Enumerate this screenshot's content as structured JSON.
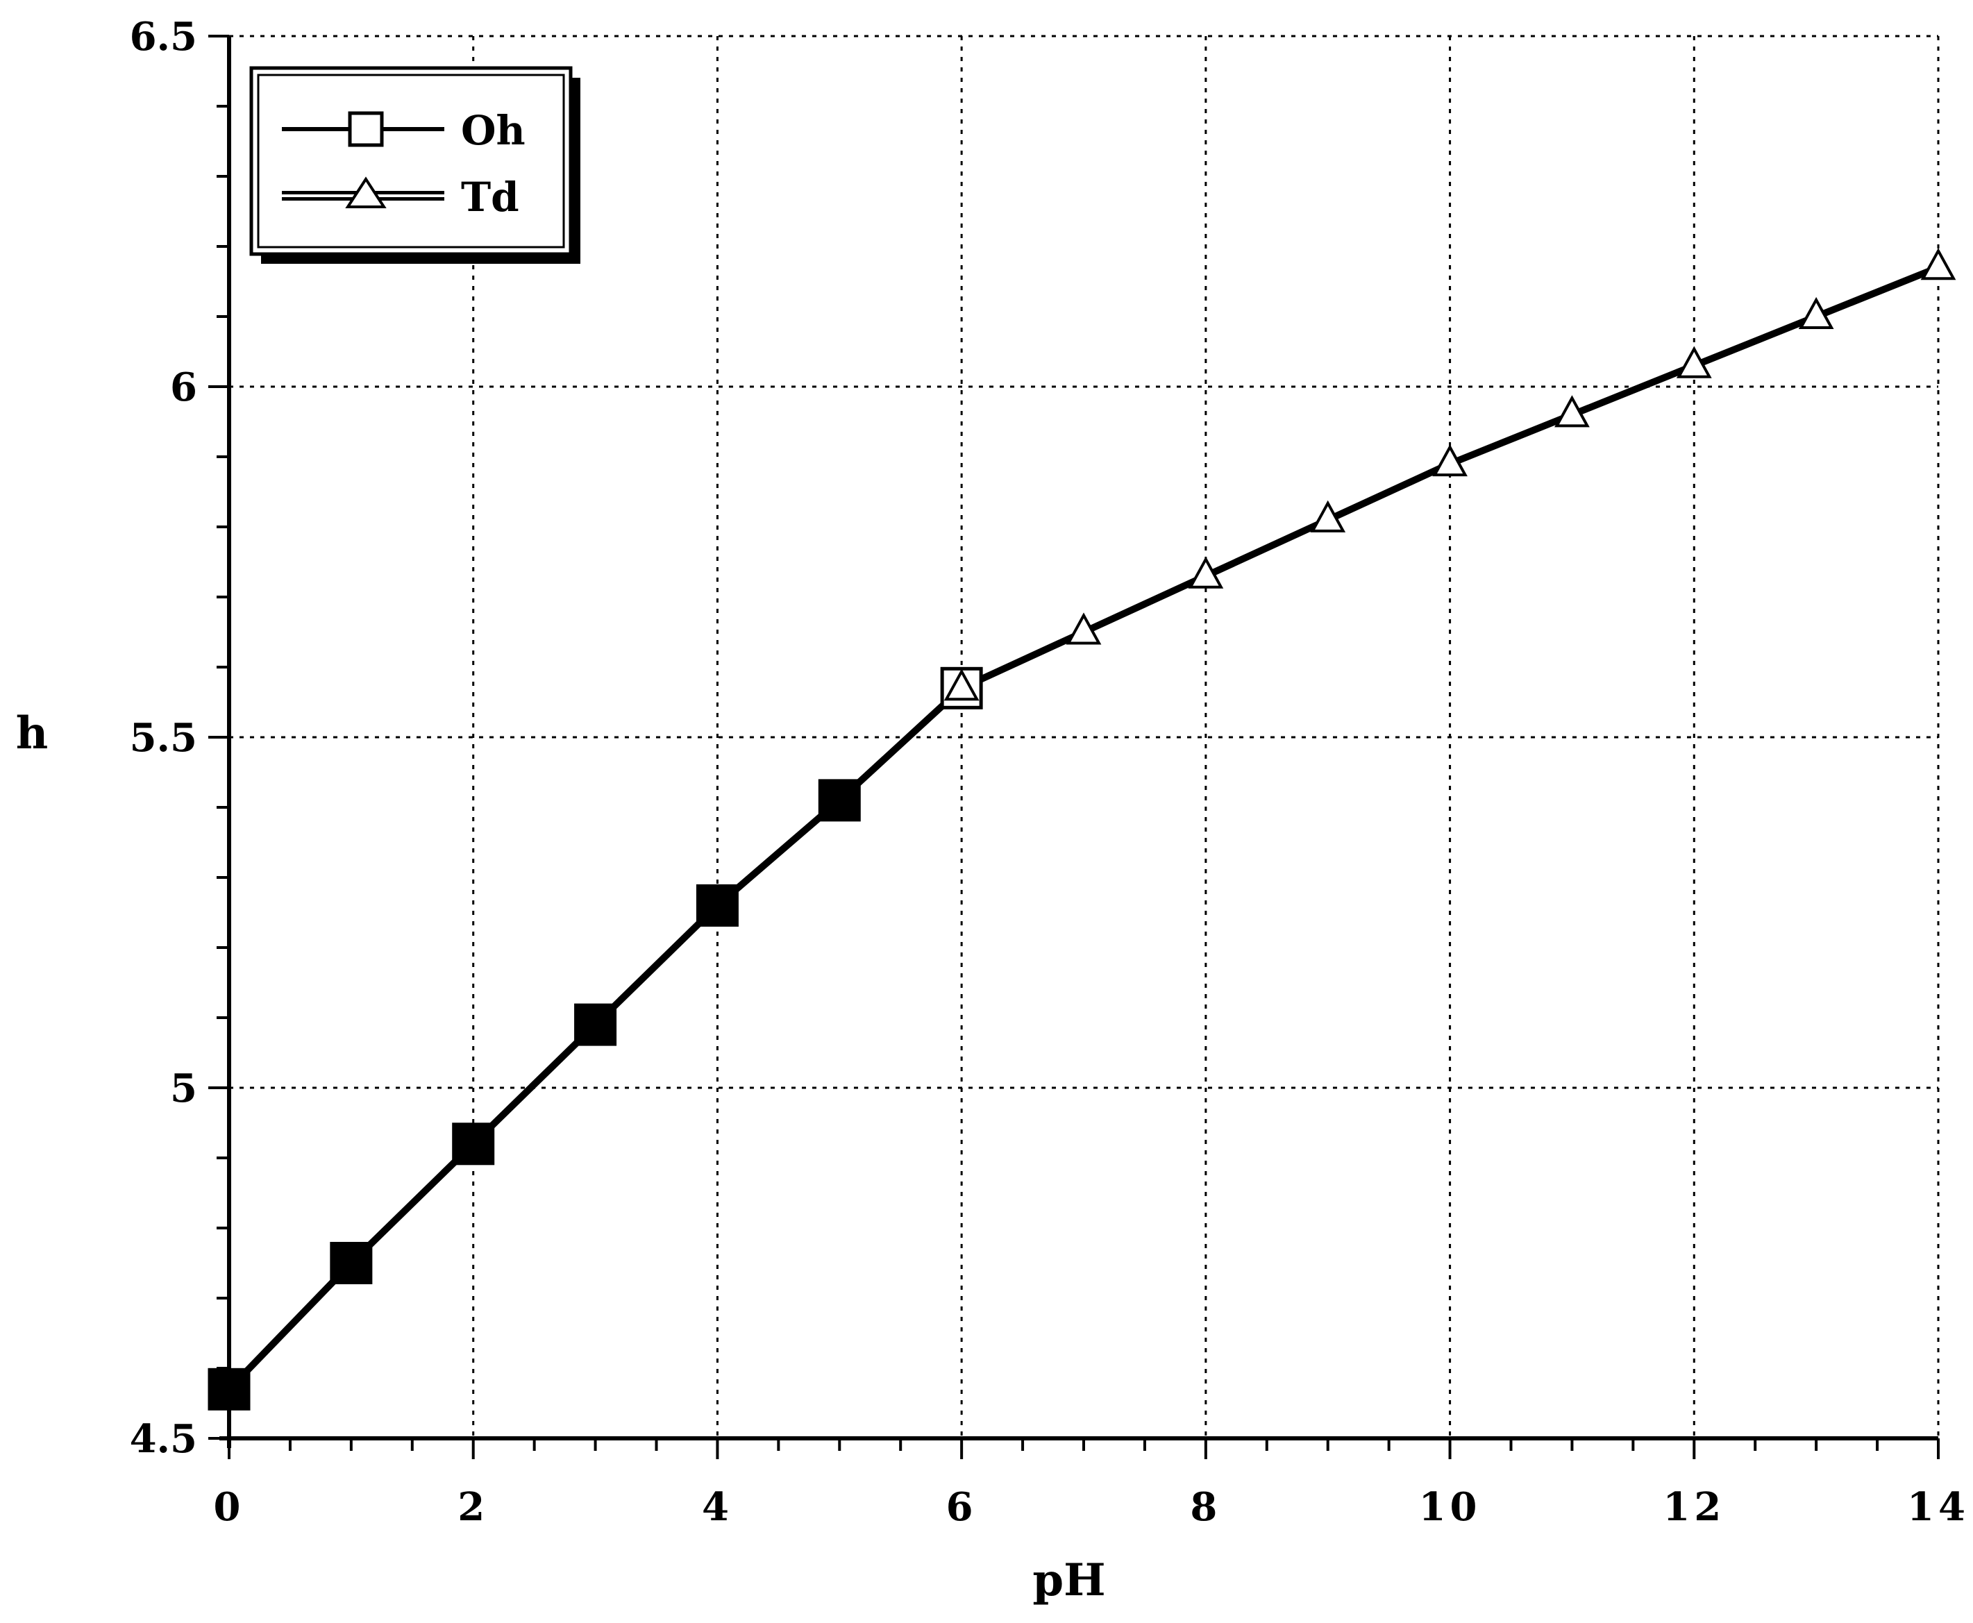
{
  "chart_data": {
    "type": "line",
    "title": "",
    "xlabel": "pH",
    "ylabel": "h",
    "xlim": [
      0,
      14
    ],
    "ylim": [
      4.5,
      6.5
    ],
    "x_ticks": [
      0,
      2,
      4,
      6,
      8,
      10,
      12,
      14
    ],
    "x_tick_labels": [
      "0",
      "2",
      "4",
      "6",
      "8",
      "10",
      "12",
      "14"
    ],
    "y_ticks": [
      4.5,
      5,
      5.5,
      6,
      6.5
    ],
    "y_tick_labels": [
      "4.5",
      "5",
      "5.5",
      "6",
      "6.5"
    ],
    "x_minor_step": 0.5,
    "y_minor_step": 0.1,
    "grid": true,
    "legend_position": "top-left",
    "series": [
      {
        "name": "Oh",
        "marker": "square",
        "x": [
          0,
          1,
          2,
          3,
          4,
          5,
          6
        ],
        "y": [
          4.57,
          4.75,
          4.92,
          5.09,
          5.26,
          5.41,
          5.57
        ],
        "filled": [
          true,
          true,
          true,
          true,
          true,
          true,
          false
        ]
      },
      {
        "name": "Td",
        "marker": "triangle",
        "x": [
          0,
          1,
          2,
          3,
          4,
          5,
          6,
          7,
          8,
          9,
          10,
          11,
          12,
          13,
          14
        ],
        "y": [
          4.57,
          4.75,
          4.92,
          5.09,
          5.26,
          5.41,
          5.57,
          5.65,
          5.73,
          5.81,
          5.89,
          5.96,
          6.03,
          6.1,
          6.17
        ],
        "show_markers_from_x": 6
      }
    ]
  },
  "colors": {
    "axis": "#000000",
    "grid": "#000000",
    "marker_filled": "#000000",
    "marker_open": "#ffffff",
    "background": "#ffffff"
  }
}
